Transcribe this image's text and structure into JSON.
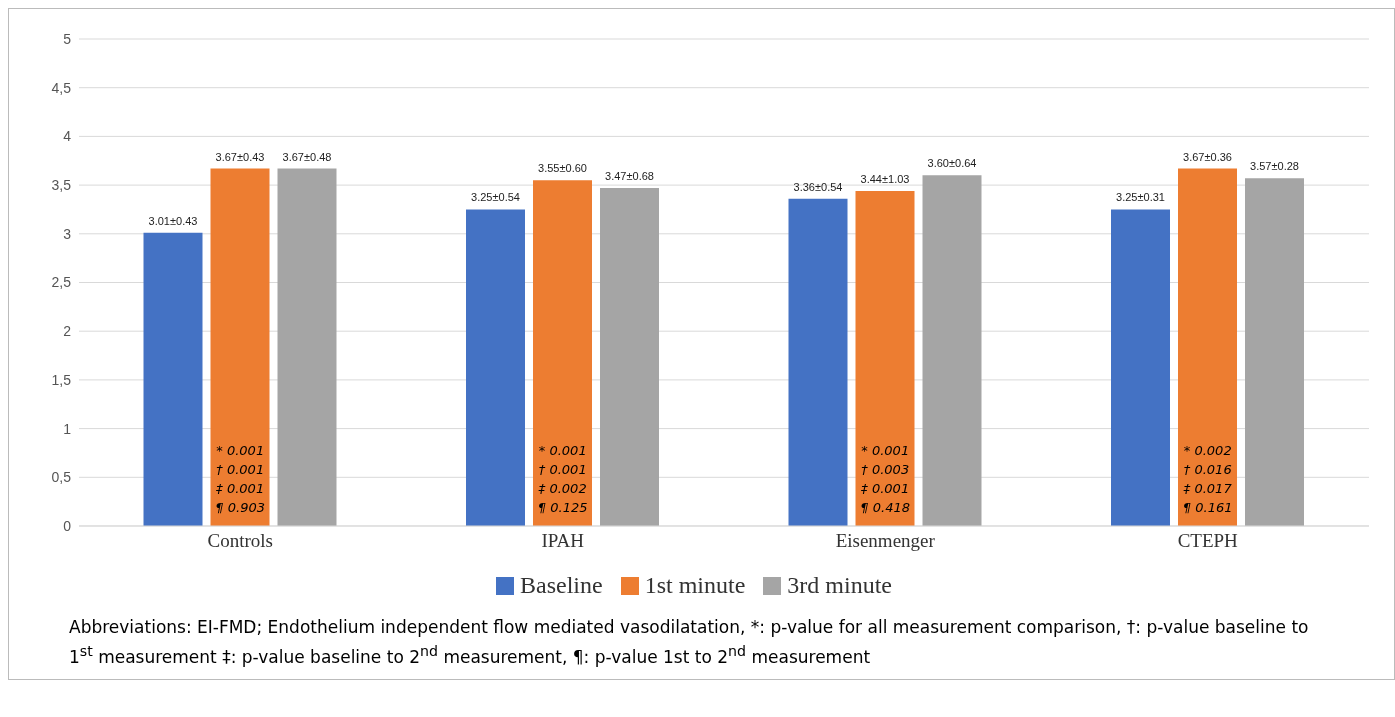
{
  "chart_data": {
    "type": "bar",
    "categories": [
      "Controls",
      "IPAH",
      "Eisenmenger",
      "CTEPH"
    ],
    "series": [
      {
        "name": "Baseline",
        "color": "#4472c4",
        "values": [
          3.01,
          3.25,
          3.36,
          3.25
        ],
        "value_labels": [
          "3.01±0.43",
          "3.25±0.54",
          "3.36±0.54",
          "3.25±0.31"
        ]
      },
      {
        "name": "1st minute",
        "color": "#ed7d31",
        "values": [
          3.67,
          3.55,
          3.44,
          3.67
        ],
        "value_labels": [
          "3.67±0.43",
          "3.55±0.60",
          "3.44±1.03",
          "3.67±0.36"
        ]
      },
      {
        "name": "3rd minute",
        "color": "#a5a5a5",
        "values": [
          3.67,
          3.47,
          3.6,
          3.57
        ],
        "value_labels": [
          "3.67±0.48",
          "3.47±0.68",
          "3.60±0.64",
          "3.57±0.28"
        ]
      }
    ],
    "ylim": [
      0,
      5
    ],
    "yticks": [
      0,
      {
        "value": 0.5,
        "label": "0,5"
      },
      1,
      {
        "value": 1.5,
        "label": "1,5"
      },
      2,
      {
        "value": 2.5,
        "label": "2,5"
      },
      3,
      {
        "value": 3.5,
        "label": "3,5"
      },
      4,
      {
        "value": 4.5,
        "label": "4,5"
      },
      5
    ],
    "grid": "y",
    "legend": "bottom",
    "annotations": [
      "* 0.001",
      "† 0.001",
      "‡ 0.001",
      "¶ 0.903",
      "* 0.001",
      "† 0.001",
      "‡ 0.002",
      "¶ 0.125",
      "* 0.001",
      "† 0.003",
      "‡ 0.001",
      "¶ 0.418",
      "* 0.002",
      "† 0.016",
      "‡ 0.017",
      "¶ 0.161",
      "Abbreviations: EI-FMD; Endothelium independent flow mediated vasodilatation, *: p-value for all measurement comparison, †: p-value baseline to 1$^{st}$ measurement ‡: p-value baseline to 2$^{nd}$ measurement, ¶: p-value 1st to 2$^{nd}$ measurement"
    ]
  }
}
